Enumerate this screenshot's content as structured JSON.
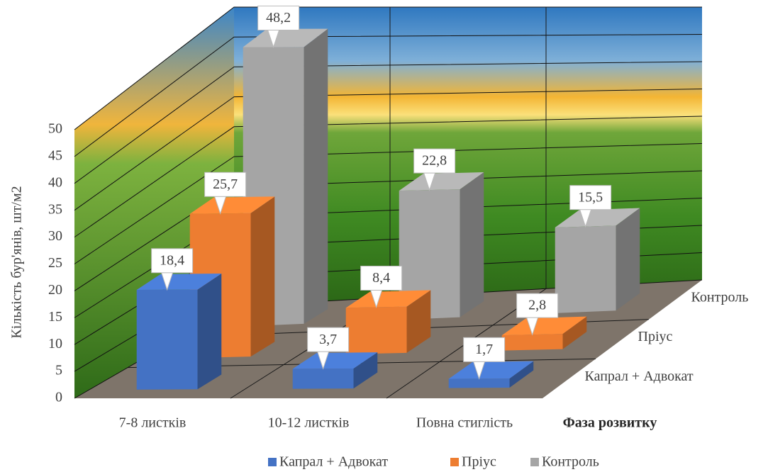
{
  "chart_data": {
    "type": "bar3d",
    "y_axis_label": "Кількість бур'янів, шт/м2",
    "x_axis_label": "Фаза розвитку",
    "categories": [
      "7-8 листків",
      "10-12 листків",
      "Повна стиглість"
    ],
    "series": [
      {
        "name": "Капрал + Адвокат",
        "color": "#4472c4",
        "values": [
          18.4,
          3.7,
          1.7
        ],
        "value_labels": [
          "18,4",
          "3,7",
          "1,7"
        ]
      },
      {
        "name": "Пріус",
        "color": "#ed7d31",
        "values": [
          25.7,
          8.4,
          2.8
        ],
        "value_labels": [
          "25,7",
          "8,4",
          "2,8"
        ]
      },
      {
        "name": "Контроль",
        "color": "#a5a5a5",
        "values": [
          48.2,
          22.8,
          15.5
        ],
        "value_labels": [
          "48,2",
          "22,8",
          "15,5"
        ]
      }
    ],
    "ylim": [
      0,
      50
    ],
    "yticks": [
      0,
      5,
      10,
      15,
      20,
      25,
      30,
      35,
      40,
      45,
      50
    ],
    "grid": true
  }
}
